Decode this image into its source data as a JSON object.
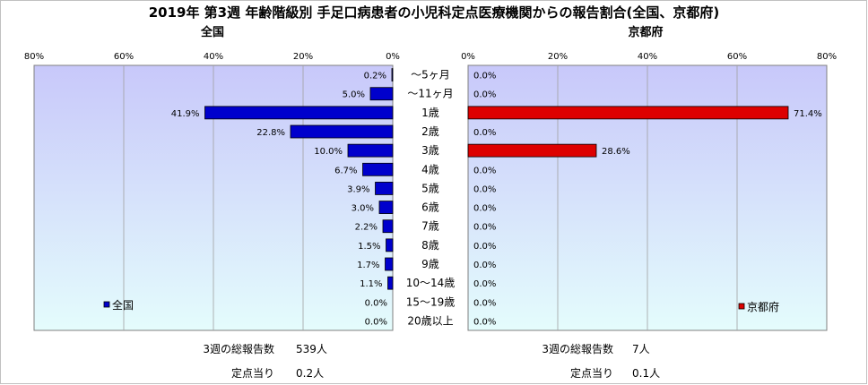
{
  "chart_data": [
    {
      "type": "bar",
      "orientation": "horizontal",
      "direction": "right-to-left",
      "title": "2019年 第3週 年齢階級別 手足口病患者の小児科定点医療機関からの報告割合(全国、京都府)",
      "subtitle": "全国",
      "categories": [
        "～5ヶ月",
        "～11ヶ月",
        "1歳",
        "2歳",
        "3歳",
        "4歳",
        "5歳",
        "6歳",
        "7歳",
        "8歳",
        "9歳",
        "10～14歳",
        "15～19歳",
        "20歳以上"
      ],
      "series": [
        {
          "name": "全国",
          "color": "#0000cc",
          "values": [
            0.2,
            5.0,
            41.9,
            22.8,
            10.0,
            6.7,
            3.9,
            3.0,
            2.2,
            1.5,
            1.7,
            1.1,
            0.0,
            0.0
          ],
          "labels": [
            "0.2%",
            "5.0%",
            "41.9%",
            "22.8%",
            "10.0%",
            "6.7%",
            "3.9%",
            "3.0%",
            "2.2%",
            "1.5%",
            "1.7%",
            "1.1%",
            "0.0%",
            "0.0%"
          ]
        }
      ],
      "xlim": [
        0,
        80
      ],
      "xticks": [
        80,
        60,
        40,
        20,
        0
      ],
      "xtick_labels": [
        "80%",
        "60%",
        "40%",
        "20%",
        "0%"
      ],
      "grid": true,
      "legend_position": "bottom-left",
      "legend_label": "全国"
    },
    {
      "type": "bar",
      "orientation": "horizontal",
      "direction": "left-to-right",
      "subtitle": "京都府",
      "categories": [
        "～5ヶ月",
        "～11ヶ月",
        "1歳",
        "2歳",
        "3歳",
        "4歳",
        "5歳",
        "6歳",
        "7歳",
        "8歳",
        "9歳",
        "10～14歳",
        "15～19歳",
        "20歳以上"
      ],
      "series": [
        {
          "name": "京都府",
          "color": "#dd0000",
          "values": [
            0.0,
            0.0,
            71.4,
            0.0,
            28.6,
            0.0,
            0.0,
            0.0,
            0.0,
            0.0,
            0.0,
            0.0,
            0.0,
            0.0
          ],
          "labels": [
            "0.0%",
            "0.0%",
            "71.4%",
            "0.0%",
            "28.6%",
            "0.0%",
            "0.0%",
            "0.0%",
            "0.0%",
            "0.0%",
            "0.0%",
            "0.0%",
            "0.0%",
            "0.0%"
          ]
        }
      ],
      "xlim": [
        0,
        80
      ],
      "xticks": [
        0,
        20,
        40,
        60,
        80
      ],
      "xtick_labels": [
        "0%",
        "20%",
        "40%",
        "60%",
        "80%"
      ],
      "grid": true,
      "legend_position": "bottom-right",
      "legend_label": "京都府"
    }
  ],
  "footer": {
    "national": {
      "total_label": "3週の総報告数",
      "total_value": "539人",
      "per_site_label": "定点当り",
      "per_site_value": "0.2人"
    },
    "kyoto": {
      "total_label": "3週の総報告数",
      "total_value": "7人",
      "per_site_label": "定点当り",
      "per_site_value": "0.1人"
    }
  },
  "colors": {
    "plot_top": "#c8c8fa",
    "plot_bottom": "#e4fcfc",
    "gridline": "#a0a0a0",
    "border": "#808080"
  }
}
